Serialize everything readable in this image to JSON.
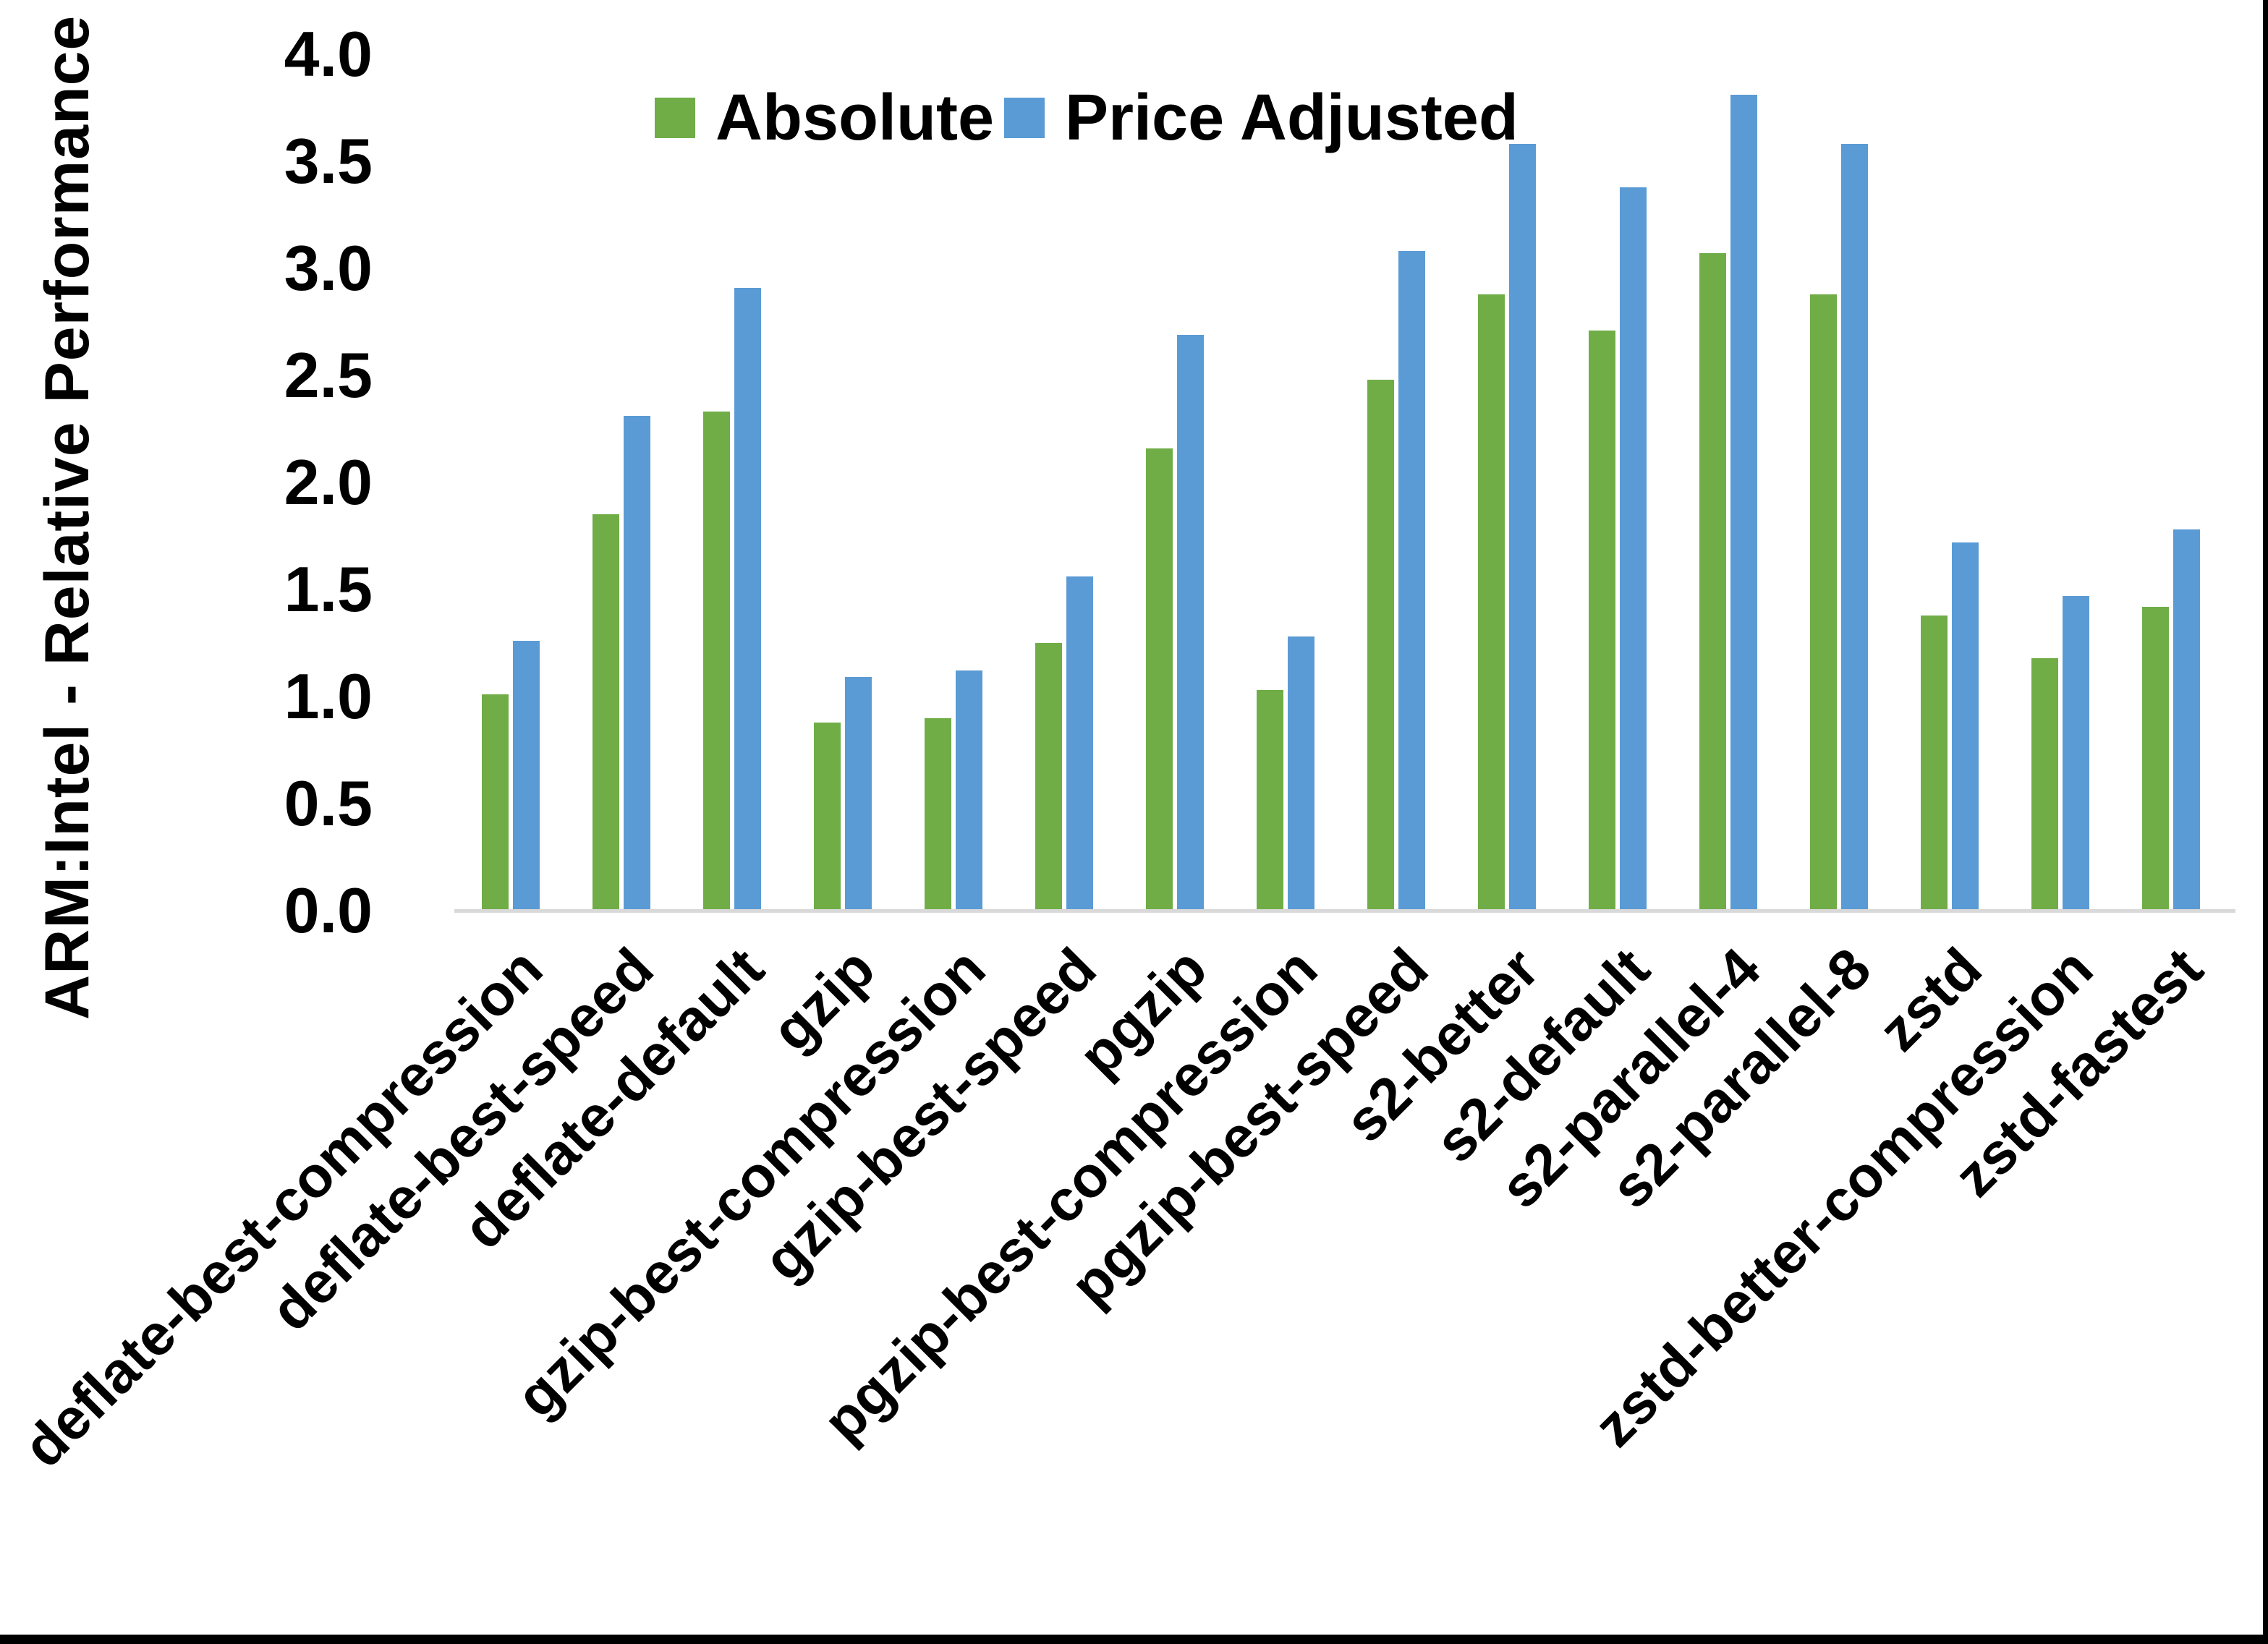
{
  "chart_data": {
    "type": "bar",
    "title": "",
    "ylabel": "ARM:Intel - Relative Performance",
    "xlabel": "",
    "ylim": [
      0.0,
      4.0
    ],
    "ytick_step": 0.5,
    "grid": false,
    "legend_position": "top-center",
    "axis_line_color": "#D9D9D9",
    "categories": [
      "deflate-best-compression",
      "deflate-best-speed",
      "deflate-default",
      "gzip",
      "gzip-best-compression",
      "gzip-best-speed",
      "pgzip",
      "pgzip-best-compression",
      "pgzip-best-speed",
      "s2-better",
      "s2-default",
      "s2-parallel-4",
      "s2-parallel-8",
      "zstd",
      "zstd-better-compression",
      "zstd-fastest"
    ],
    "series": [
      {
        "name": "Absolute",
        "color": "#70AD47",
        "values": [
          1.01,
          1.85,
          2.33,
          0.88,
          0.9,
          1.25,
          2.16,
          1.03,
          2.48,
          2.88,
          2.71,
          3.07,
          2.88,
          1.38,
          1.18,
          1.42
        ]
      },
      {
        "name": "Price Adjusted",
        "color": "#5B9BD5",
        "values": [
          1.26,
          2.31,
          2.91,
          1.09,
          1.12,
          1.56,
          2.69,
          1.28,
          3.08,
          3.58,
          3.38,
          3.81,
          3.58,
          1.72,
          1.47,
          1.78
        ]
      }
    ]
  },
  "frame": {
    "right_border_color": "#000000",
    "bottom_border_color": "#000000"
  }
}
